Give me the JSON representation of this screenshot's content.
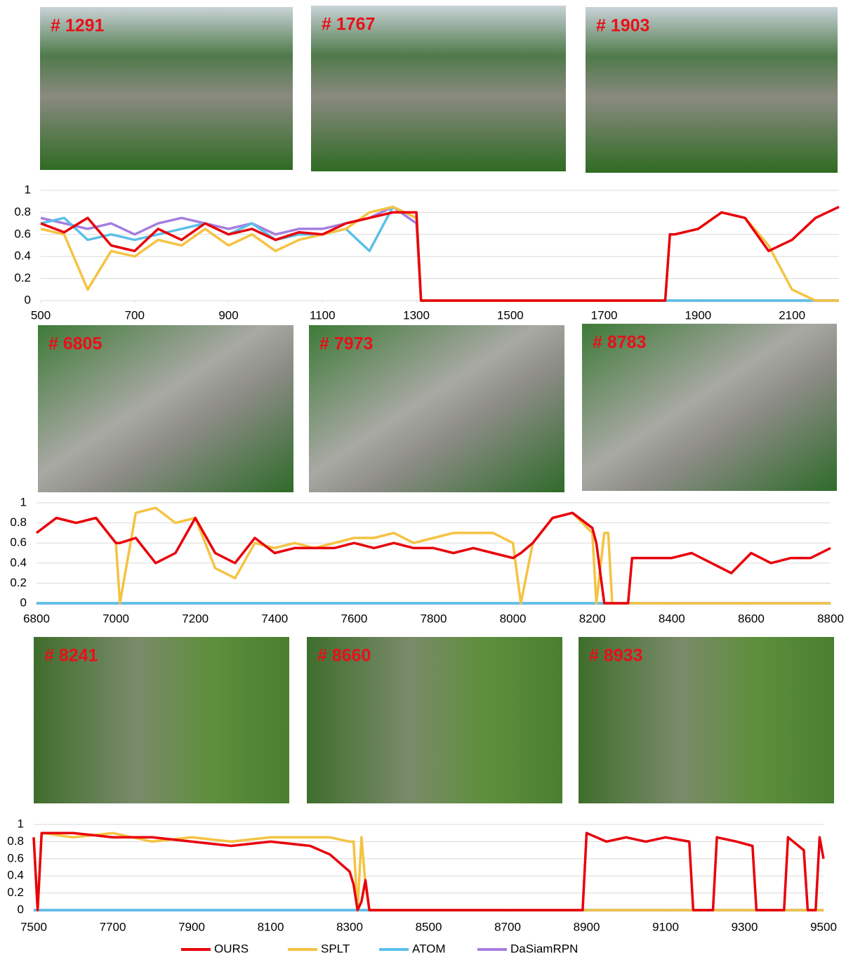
{
  "frames": [
    [
      "# 1291",
      "# 1767",
      "# 1903"
    ],
    [
      "# 6805",
      "# 7973",
      "# 8783"
    ],
    [
      "# 8241",
      "# 8660",
      "# 8933"
    ]
  ],
  "chart_data": [
    {
      "type": "line",
      "x": [
        500,
        550,
        600,
        650,
        700,
        750,
        800,
        850,
        900,
        950,
        1000,
        1050,
        1100,
        1150,
        1200,
        1250,
        1300,
        1310,
        1350,
        1400,
        1450,
        1500,
        1550,
        1600,
        1650,
        1700,
        1750,
        1800,
        1830,
        1840,
        1850,
        1900,
        1950,
        2000,
        2050,
        2100,
        2150,
        2200
      ],
      "xlim": [
        500,
        2200
      ],
      "xticks": [
        500,
        700,
        900,
        1100,
        1300,
        1500,
        1700,
        1900,
        2100
      ],
      "ylim": [
        0,
        1
      ],
      "yticks": [
        0,
        0.2,
        0.4,
        0.6,
        0.8,
        1
      ],
      "grid": true,
      "series": [
        {
          "color": "#a57ee0",
          "values": [
            0.75,
            0.7,
            0.65,
            0.7,
            0.6,
            0.7,
            0.75,
            0.7,
            0.65,
            0.7,
            0.6,
            0.65,
            0.65,
            0.7,
            0.75,
            0.85,
            0.7,
            0,
            0,
            0,
            0,
            0,
            0,
            0,
            0,
            0,
            0,
            0,
            0,
            0,
            0,
            0,
            0,
            0,
            0,
            0,
            0,
            0
          ]
        },
        {
          "color": "#5bc0e8",
          "values": [
            0.7,
            0.75,
            0.55,
            0.6,
            0.55,
            0.6,
            0.65,
            0.7,
            0.6,
            0.7,
            0.55,
            0.6,
            0.6,
            0.65,
            0.45,
            0.85,
            0.75,
            0,
            0,
            0,
            0,
            0,
            0,
            0,
            0,
            0,
            0,
            0,
            0,
            0,
            0,
            0,
            0,
            0,
            0,
            0,
            0,
            0
          ]
        },
        {
          "color": "#f5c342",
          "values": [
            0.65,
            0.6,
            0.1,
            0.45,
            0.4,
            0.55,
            0.5,
            0.65,
            0.5,
            0.6,
            0.45,
            0.55,
            0.6,
            0.65,
            0.8,
            0.85,
            0.75,
            0,
            0,
            0,
            0,
            0,
            0,
            0,
            0,
            0,
            0,
            0,
            0,
            0.6,
            0.6,
            0.65,
            0.8,
            0.75,
            0.5,
            0.1,
            0,
            0
          ]
        },
        {
          "color": "#e8000b",
          "values": [
            0.7,
            0.62,
            0.75,
            0.5,
            0.45,
            0.65,
            0.55,
            0.7,
            0.6,
            0.65,
            0.55,
            0.62,
            0.6,
            0.7,
            0.75,
            0.8,
            0.8,
            0,
            0,
            0,
            0,
            0,
            0,
            0,
            0,
            0,
            0,
            0,
            0,
            0.6,
            0.6,
            0.65,
            0.8,
            0.75,
            0.45,
            0.55,
            0.75,
            0.85
          ]
        }
      ]
    },
    {
      "type": "line",
      "x": [
        6800,
        6850,
        6900,
        6950,
        7000,
        7010,
        7050,
        7100,
        7150,
        7200,
        7250,
        7300,
        7350,
        7400,
        7450,
        7500,
        7550,
        7600,
        7650,
        7700,
        7750,
        7800,
        7850,
        7900,
        7950,
        8000,
        8020,
        8050,
        8100,
        8150,
        8200,
        8210,
        8230,
        8240,
        8250,
        8290,
        8300,
        8350,
        8400,
        8450,
        8500,
        8550,
        8600,
        8650,
        8700,
        8750,
        8800
      ],
      "xlim": [
        6800,
        8800
      ],
      "xticks": [
        6800,
        7000,
        7200,
        7400,
        7600,
        7800,
        8000,
        8200,
        8400,
        8600,
        8800
      ],
      "ylim": [
        0,
        1
      ],
      "yticks": [
        0,
        0.2,
        0.4,
        0.6,
        0.8,
        1
      ],
      "grid": true,
      "series": [
        {
          "color": "#a57ee0",
          "values": [
            0,
            0,
            0,
            0,
            0,
            0,
            0,
            0,
            0,
            0,
            0,
            0,
            0,
            0,
            0,
            0,
            0,
            0,
            0,
            0,
            0,
            0,
            0,
            0,
            0,
            0,
            0,
            0,
            0,
            0,
            0,
            0,
            0,
            0,
            0,
            0,
            0,
            0,
            0,
            0,
            0,
            0,
            0,
            0,
            0,
            0,
            0
          ]
        },
        {
          "color": "#5bc0e8",
          "values": [
            0,
            0,
            0,
            0,
            0,
            0,
            0,
            0,
            0,
            0,
            0,
            0,
            0,
            0,
            0,
            0,
            0,
            0,
            0,
            0,
            0,
            0,
            0,
            0,
            0,
            0,
            0,
            0,
            0,
            0,
            0,
            0,
            0,
            0,
            0,
            0,
            0,
            0,
            0,
            0,
            0,
            0,
            0,
            0,
            0,
            0,
            0
          ]
        },
        {
          "color": "#f5c342",
          "values": [
            0.7,
            0.85,
            0.8,
            0.85,
            0.6,
            0,
            0.9,
            0.95,
            0.8,
            0.85,
            0.35,
            0.25,
            0.6,
            0.55,
            0.6,
            0.55,
            0.6,
            0.65,
            0.65,
            0.7,
            0.6,
            0.65,
            0.7,
            0.7,
            0.7,
            0.6,
            0,
            0.6,
            0.85,
            0.9,
            0.7,
            0,
            0.7,
            0.7,
            0,
            0,
            0,
            0,
            0,
            0,
            0,
            0,
            0,
            0,
            0,
            0,
            0
          ]
        },
        {
          "color": "#e8000b",
          "values": [
            0.7,
            0.85,
            0.8,
            0.85,
            0.6,
            0.6,
            0.65,
            0.4,
            0.5,
            0.85,
            0.5,
            0.4,
            0.65,
            0.5,
            0.55,
            0.55,
            0.55,
            0.6,
            0.55,
            0.6,
            0.55,
            0.55,
            0.5,
            0.55,
            0.5,
            0.45,
            0.5,
            0.6,
            0.85,
            0.9,
            0.75,
            0.6,
            0,
            0,
            0,
            0,
            0.45,
            0.45,
            0.45,
            0.5,
            0.4,
            0.3,
            0.5,
            0.4,
            0.45,
            0.45,
            0.55
          ]
        }
      ]
    },
    {
      "type": "line",
      "x": [
        7500,
        7510,
        7520,
        7600,
        7700,
        7800,
        7900,
        8000,
        8100,
        8200,
        8250,
        8300,
        8310,
        8320,
        8330,
        8340,
        8350,
        8500,
        8700,
        8890,
        8900,
        8950,
        9000,
        9050,
        9100,
        9160,
        9170,
        9220,
        9230,
        9280,
        9320,
        9330,
        9400,
        9410,
        9450,
        9460,
        9480,
        9490,
        9500
      ],
      "xlim": [
        7500,
        9500
      ],
      "xticks": [
        7500,
        7700,
        7900,
        8100,
        8300,
        8500,
        8700,
        8900,
        9100,
        9300,
        9500
      ],
      "ylim": [
        0,
        1
      ],
      "yticks": [
        0,
        0.2,
        0.4,
        0.6,
        0.8,
        1
      ],
      "grid": true,
      "series": [
        {
          "name": "DaSiamRPN",
          "color": "#a57ee0",
          "values": [
            0,
            0,
            0,
            0,
            0,
            0,
            0,
            0,
            0,
            0,
            0,
            0,
            0,
            0,
            0,
            0,
            0,
            0,
            0,
            0,
            0,
            0,
            0,
            0,
            0,
            0,
            0,
            0,
            0,
            0,
            0,
            0,
            0,
            0,
            0,
            0,
            0,
            0,
            0
          ]
        },
        {
          "name": "ATOM",
          "color": "#5bc0e8",
          "values": [
            0,
            0,
            0,
            0,
            0,
            0,
            0,
            0,
            0,
            0,
            0,
            0,
            0,
            0,
            0,
            0,
            0,
            0,
            0,
            0,
            0,
            0,
            0,
            0,
            0,
            0,
            0,
            0,
            0,
            0,
            0,
            0,
            0,
            0,
            0,
            0,
            0,
            0,
            0
          ]
        },
        {
          "name": "SPLT",
          "color": "#f5c342",
          "values": [
            0.85,
            0,
            0.9,
            0.85,
            0.9,
            0.8,
            0.85,
            0.8,
            0.85,
            0.85,
            0.85,
            0.8,
            0.8,
            0,
            0.85,
            0.3,
            0,
            0,
            0,
            0,
            0,
            0,
            0,
            0,
            0,
            0,
            0,
            0,
            0,
            0,
            0,
            0,
            0,
            0,
            0,
            0,
            0,
            0,
            0
          ]
        },
        {
          "name": "OURS",
          "color": "#e8000b",
          "values": [
            0.85,
            0,
            0.9,
            0.9,
            0.85,
            0.85,
            0.8,
            0.75,
            0.8,
            0.75,
            0.65,
            0.45,
            0.3,
            0,
            0.1,
            0.35,
            0,
            0,
            0,
            0,
            0.9,
            0.8,
            0.85,
            0.8,
            0.85,
            0.8,
            0,
            0,
            0.85,
            0.8,
            0.75,
            0,
            0,
            0.85,
            0.7,
            0,
            0,
            0.85,
            0.6
          ]
        }
      ]
    }
  ]
}
